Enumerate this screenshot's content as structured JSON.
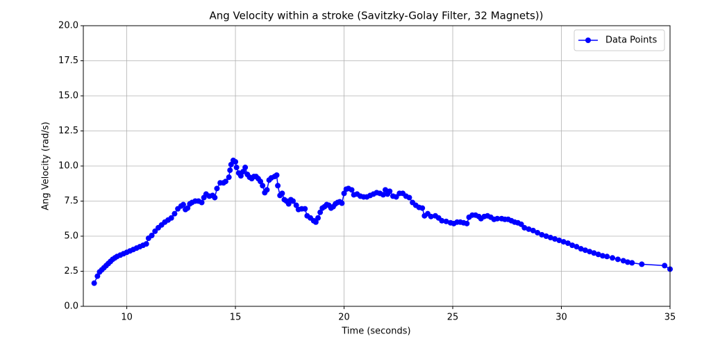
{
  "chart_data": {
    "type": "line",
    "title": "Ang Velocity within a stroke (Savitzky-Golay Filter, 32 Magnets))",
    "x_label": "Time (seconds)",
    "y_label": "Ang Velocity (rad/s)",
    "xlim": [
      8,
      35
    ],
    "xticks": [
      10,
      15,
      20,
      25,
      30,
      35
    ],
    "ylim": [
      0,
      20
    ],
    "yticks": [
      {
        "value": 0,
        "label": "0.0"
      },
      2.5,
      {
        "value": 5,
        "label": "5.0"
      },
      7.5,
      {
        "value": 10,
        "label": "10.0"
      },
      12.5,
      {
        "value": 15,
        "label": "15.0"
      },
      17.5,
      {
        "value": 20,
        "label": "20.0"
      }
    ],
    "grid": true,
    "legend": "upper right",
    "x": [
      8.5,
      8.65,
      8.75,
      8.85,
      8.95,
      9.05,
      9.15,
      9.25,
      9.35,
      9.45,
      9.55,
      9.7,
      9.85,
      10.0,
      10.15,
      10.3,
      10.45,
      10.6,
      10.75,
      10.9,
      11.0,
      11.15,
      11.3,
      11.45,
      11.6,
      11.75,
      11.9,
      12.05,
      12.2,
      12.35,
      12.5,
      12.6,
      12.7,
      12.8,
      12.9,
      13.0,
      13.15,
      13.3,
      13.45,
      13.55,
      13.65,
      13.8,
      13.95,
      14.05,
      14.15,
      14.3,
      14.45,
      14.55,
      14.7,
      14.75,
      14.8,
      14.9,
      15.0,
      15.05,
      15.15,
      15.25,
      15.35,
      15.45,
      15.55,
      15.65,
      15.75,
      15.85,
      15.95,
      16.05,
      16.15,
      16.25,
      16.35,
      16.45,
      16.55,
      16.65,
      16.8,
      16.9,
      16.95,
      17.05,
      17.15,
      17.25,
      17.35,
      17.45,
      17.55,
      17.65,
      17.8,
      17.9,
      18.05,
      18.2,
      18.3,
      18.45,
      18.6,
      18.7,
      18.8,
      18.9,
      19.0,
      19.1,
      19.2,
      19.3,
      19.4,
      19.5,
      19.6,
      19.7,
      19.8,
      19.9,
      20.0,
      20.1,
      20.2,
      20.35,
      20.45,
      20.6,
      20.75,
      20.9,
      21.05,
      21.2,
      21.35,
      21.5,
      21.65,
      21.8,
      21.9,
      22.0,
      22.1,
      22.25,
      22.4,
      22.55,
      22.7,
      22.85,
      23.0,
      23.15,
      23.3,
      23.45,
      23.6,
      23.7,
      23.85,
      24.0,
      24.2,
      24.35,
      24.5,
      24.7,
      24.9,
      25.05,
      25.2,
      25.35,
      25.5,
      25.65,
      25.75,
      25.9,
      26.05,
      26.2,
      26.3,
      26.45,
      26.6,
      26.75,
      26.9,
      27.05,
      27.25,
      27.4,
      27.55,
      27.7,
      27.85,
      28.0,
      28.15,
      28.3,
      28.5,
      28.7,
      28.9,
      29.1,
      29.3,
      29.5,
      29.7,
      29.9,
      30.1,
      30.3,
      30.5,
      30.7,
      30.9,
      31.1,
      31.3,
      31.5,
      31.7,
      31.9,
      32.1,
      32.35,
      32.6,
      32.85,
      33.05,
      33.25,
      33.7,
      34.75,
      35.0
    ],
    "series": [
      {
        "name": "Data Points",
        "color": "#0000ff",
        "values": [
          1.65,
          2.15,
          2.45,
          2.6,
          2.75,
          2.9,
          3.05,
          3.2,
          3.35,
          3.45,
          3.55,
          3.65,
          3.75,
          3.85,
          3.95,
          4.05,
          4.15,
          4.25,
          4.35,
          4.45,
          4.85,
          5.05,
          5.35,
          5.6,
          5.8,
          6.0,
          6.15,
          6.3,
          6.6,
          6.95,
          7.15,
          7.25,
          6.9,
          7.0,
          7.3,
          7.4,
          7.5,
          7.5,
          7.4,
          7.75,
          8.0,
          7.85,
          7.9,
          7.75,
          8.4,
          8.8,
          8.8,
          8.9,
          9.2,
          9.7,
          10.1,
          10.4,
          10.3,
          9.9,
          9.5,
          9.3,
          9.6,
          9.9,
          9.4,
          9.2,
          9.1,
          9.25,
          9.25,
          9.1,
          8.9,
          8.6,
          8.1,
          8.3,
          9.0,
          9.15,
          9.25,
          9.35,
          8.6,
          7.9,
          8.05,
          7.6,
          7.5,
          7.3,
          7.6,
          7.5,
          7.2,
          6.9,
          6.95,
          6.95,
          6.45,
          6.3,
          6.1,
          6.0,
          6.3,
          6.7,
          7.0,
          7.1,
          7.25,
          7.2,
          7.0,
          7.1,
          7.3,
          7.4,
          7.45,
          7.35,
          8.05,
          8.35,
          8.4,
          8.3,
          7.95,
          8.0,
          7.85,
          7.8,
          7.8,
          7.9,
          8.0,
          8.1,
          8.05,
          7.95,
          8.3,
          8.0,
          8.2,
          7.85,
          7.8,
          8.05,
          8.05,
          7.85,
          7.75,
          7.4,
          7.2,
          7.05,
          7.0,
          6.45,
          6.6,
          6.4,
          6.45,
          6.3,
          6.1,
          6.05,
          5.95,
          5.9,
          6.0,
          6.0,
          5.95,
          5.9,
          6.35,
          6.5,
          6.5,
          6.4,
          6.25,
          6.4,
          6.45,
          6.35,
          6.2,
          6.25,
          6.25,
          6.2,
          6.2,
          6.1,
          6.0,
          5.95,
          5.85,
          5.6,
          5.5,
          5.4,
          5.25,
          5.1,
          5.0,
          4.9,
          4.8,
          4.7,
          4.6,
          4.5,
          4.35,
          4.25,
          4.1,
          4.0,
          3.9,
          3.8,
          3.7,
          3.6,
          3.55,
          3.45,
          3.35,
          3.25,
          3.15,
          3.1,
          3.0,
          2.9,
          2.65
        ]
      }
    ]
  }
}
